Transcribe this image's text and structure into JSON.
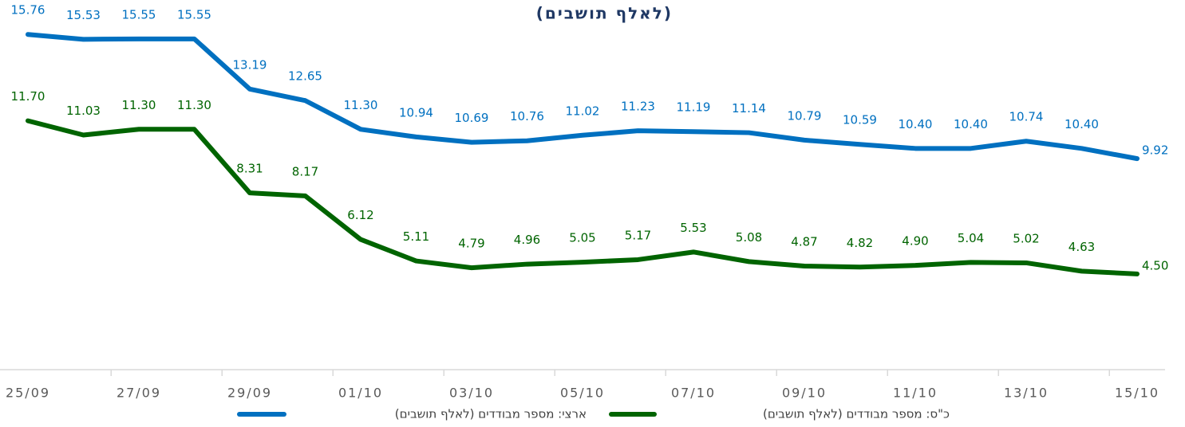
{
  "chart_data": {
    "type": "line",
    "title": "(לאלף תושבים)",
    "categories": [
      "25/09",
      null,
      "27/09",
      null,
      "29/09",
      null,
      "01/10",
      null,
      "03/10",
      null,
      "05/10",
      null,
      "07/10",
      null,
      "09/10",
      null,
      "11/10",
      null,
      "13/10",
      null,
      "15/10"
    ],
    "series": [
      {
        "name": "ארצי: מספר מבודדים (לאלף תושבים)",
        "color": "#0070c0",
        "values": [
          15.76,
          15.53,
          15.55,
          15.55,
          13.19,
          12.65,
          11.3,
          10.94,
          10.69,
          10.76,
          11.02,
          11.23,
          11.19,
          11.14,
          10.79,
          10.59,
          10.4,
          10.4,
          10.74,
          10.4,
          9.92
        ],
        "value_labels": [
          "15.76",
          "15.53",
          "15.55",
          "15.55",
          "13.19",
          "12.65",
          "11.30",
          "10.94",
          "10.69",
          "10.76",
          "11.02",
          "11.23",
          "11.19",
          "11.14",
          "10.79",
          "10.59",
          "10.40",
          "10.40",
          "10.74",
          "10.40",
          "9.92"
        ]
      },
      {
        "name": "כ\"ס: מספר מבודדים (לאלף תושבים)",
        "color": "#006400",
        "values": [
          11.7,
          11.03,
          11.3,
          11.3,
          8.31,
          8.17,
          6.12,
          5.11,
          4.79,
          4.96,
          5.05,
          5.17,
          5.53,
          5.08,
          4.87,
          4.82,
          4.9,
          5.04,
          5.02,
          4.63,
          4.5
        ],
        "value_labels": [
          "11.70",
          "11.03",
          "11.30",
          "11.30",
          "8.31",
          "8.17",
          "6.12",
          "5.11",
          "4.79",
          "4.96",
          "5.05",
          "5.17",
          "5.53",
          "5.08",
          "4.87",
          "4.82",
          "4.90",
          "5.04",
          "5.02",
          "4.63",
          "4.50"
        ]
      }
    ],
    "ylim": [
      0,
      18
    ]
  }
}
